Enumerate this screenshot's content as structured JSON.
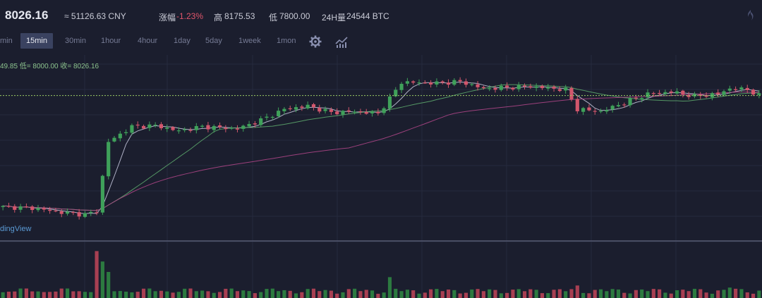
{
  "header": {
    "price": "8026.16",
    "cny": "≈ 51126.63 CNY",
    "change_label": "涨幅",
    "change_value": "-1.23%",
    "high_label": "高",
    "high_value": "8175.53",
    "low_label": "低",
    "low_value": "7800.00",
    "volume_label": "24H量",
    "volume_value": "24544 BTC"
  },
  "intervals": [
    "min",
    "15min",
    "30min",
    "1hour",
    "4hour",
    "1day",
    "5day",
    "1week",
    "1mon"
  ],
  "active_interval": "15min",
  "icons": [
    "gear-icon",
    "indicator-icon",
    "exchange-logo-icon"
  ],
  "ohlc_text": "49.85 低= 8000.00 收= 8026.16",
  "watermark": "dingView",
  "colors": {
    "up": "#3fa15a",
    "down": "#d2566c",
    "ma_fast": "#c9cbe0",
    "ma_mid": "#5fae6e",
    "ma_slow": "#b3468a",
    "price_line": "#9ccc65"
  },
  "chart_data": {
    "type": "candlestick",
    "price_line": 8026.16,
    "ylim": [
      6700,
      8400
    ],
    "candles_count": 130,
    "close_anchors": [
      [
        0,
        7000
      ],
      [
        5,
        6990
      ],
      [
        10,
        6950
      ],
      [
        14,
        6930
      ],
      [
        16,
        6960
      ],
      [
        18,
        7600
      ],
      [
        22,
        7740
      ],
      [
        26,
        7750
      ],
      [
        30,
        7700
      ],
      [
        34,
        7740
      ],
      [
        40,
        7720
      ],
      [
        44,
        7800
      ],
      [
        48,
        7900
      ],
      [
        52,
        7930
      ],
      [
        56,
        7870
      ],
      [
        60,
        7880
      ],
      [
        64,
        7860
      ],
      [
        66,
        8000
      ],
      [
        68,
        8150
      ],
      [
        74,
        8140
      ],
      [
        78,
        8155
      ],
      [
        82,
        8090
      ],
      [
        86,
        8100
      ],
      [
        90,
        8110
      ],
      [
        96,
        8080
      ],
      [
        98,
        7900
      ],
      [
        102,
        7880
      ],
      [
        106,
        7960
      ],
      [
        110,
        8040
      ],
      [
        114,
        8060
      ],
      [
        118,
        8020
      ],
      [
        122,
        8040
      ],
      [
        124,
        8090
      ],
      [
        127,
        8080
      ],
      [
        129,
        8026
      ]
    ],
    "volume_spikes": [
      [
        16,
        45
      ],
      [
        17,
        35
      ],
      [
        18,
        25
      ],
      [
        66,
        20
      ],
      [
        98,
        12
      ],
      [
        124,
        10
      ]
    ]
  }
}
